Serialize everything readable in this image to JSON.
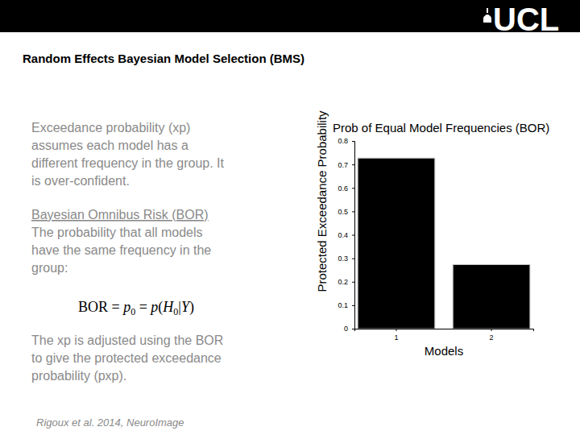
{
  "chart_data": {
    "type": "bar",
    "title": "Prob of Equal Model Frequencies (BOR)",
    "x_label": "Models",
    "y_label": "Protected Exceedance Probability",
    "categories": [
      "1",
      "2"
    ],
    "values": [
      0.727,
      0.273
    ],
    "color": "#000000",
    "ylim": [
      0,
      0.8
    ],
    "yticks": [
      0,
      0.1,
      0.2,
      0.3,
      0.4,
      0.5,
      0.6,
      0.7,
      0.8
    ],
    "grid": false
  },
  "slide": {
    "logo": "UCL",
    "heading": "Random Effects Bayesian Model Selection (BMS)",
    "paragraphs": [
      {
        "lines": [
          "Exceedance probability (xp)",
          "assumes each model has a",
          "different frequency in the group. It",
          "is over-confident."
        ]
      },
      {
        "heading": "Bayesian Omnibus Risk (BOR)",
        "lines": [
          "The probability that all models",
          "have the same frequency in the",
          "group:"
        ]
      },
      {
        "lines": [
          "The xp is adjusted using the BOR",
          "to give the protected exceedance",
          "probability (pxp)."
        ]
      }
    ],
    "formula": [
      {
        "text": "BOR = ",
        "style": "normal"
      },
      {
        "text": "p",
        "style": "italic"
      },
      {
        "text": "0",
        "style": "sub"
      },
      {
        "text": " = ",
        "style": "normal"
      },
      {
        "text": "p",
        "style": "italic"
      },
      {
        "text": "(",
        "style": "normal"
      },
      {
        "text": "H",
        "style": "italic"
      },
      {
        "text": "0",
        "style": "sub"
      },
      {
        "text": "|",
        "style": "normal"
      },
      {
        "text": "Y",
        "style": "italic"
      },
      {
        "text": ")",
        "style": "normal"
      }
    ],
    "citation": "Rigoux et al. 2014, NeuroImage"
  }
}
